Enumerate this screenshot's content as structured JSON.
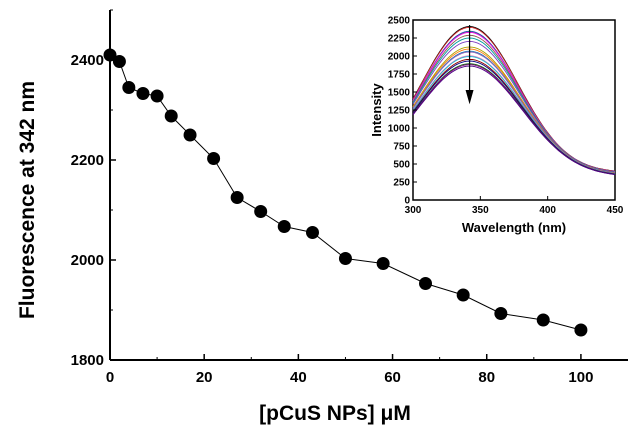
{
  "chart_data": [
    {
      "type": "scatter",
      "xlabel": "[pCuS NPs] μM",
      "ylabel": "Fluorescence at 342 nm",
      "xlim": [
        0,
        110
      ],
      "ylim": [
        1800,
        2500
      ],
      "xticks": [
        0,
        20,
        40,
        60,
        80,
        100
      ],
      "yticks": [
        1800,
        2000,
        2200,
        2400
      ],
      "grid": false,
      "connected": true,
      "series": [
        {
          "x": [
            0,
            2,
            4,
            7,
            10,
            13,
            17,
            22,
            27,
            32,
            37,
            43,
            50,
            58,
            67,
            75,
            83,
            92,
            100
          ],
          "y": [
            2410,
            2397,
            2345,
            2333,
            2328,
            2288,
            2250,
            2203,
            2125,
            2097,
            2067,
            2055,
            2003,
            1993,
            1953,
            1930,
            1893,
            1880,
            1860
          ]
        }
      ]
    },
    {
      "type": "line",
      "xlabel": "Wavelength (nm)",
      "ylabel": "Intensity",
      "xlim": [
        300,
        450
      ],
      "ylim": [
        0,
        2500
      ],
      "xticks": [
        300,
        350,
        400,
        450
      ],
      "yticks": [
        0,
        250,
        500,
        750,
        1000,
        1250,
        1500,
        1750,
        2000,
        2250,
        2500
      ],
      "grid": false,
      "annotation": "downward arrow at ~342 nm indicating decreasing intensity",
      "peak_wavelength": 342,
      "peak_values": [
        2410,
        2397,
        2345,
        2333,
        2328,
        2288,
        2250,
        2203,
        2125,
        2097,
        2067,
        2055,
        2003,
        1993,
        1953,
        1930,
        1893,
        1880,
        1860
      ],
      "series_colors": [
        "#000000",
        "#d62728",
        "#1f3fbf",
        "#2ca02c",
        "#ff00ff",
        "#8c564b",
        "#00a0a0",
        "#7f3fbf",
        "#b0a000",
        "#ff7f0e",
        "#1f77b4",
        "#9467bd",
        "#e377c2",
        "#17becf",
        "#8b0000",
        "#000080",
        "#006400",
        "#800080",
        "#4b0082"
      ]
    }
  ]
}
